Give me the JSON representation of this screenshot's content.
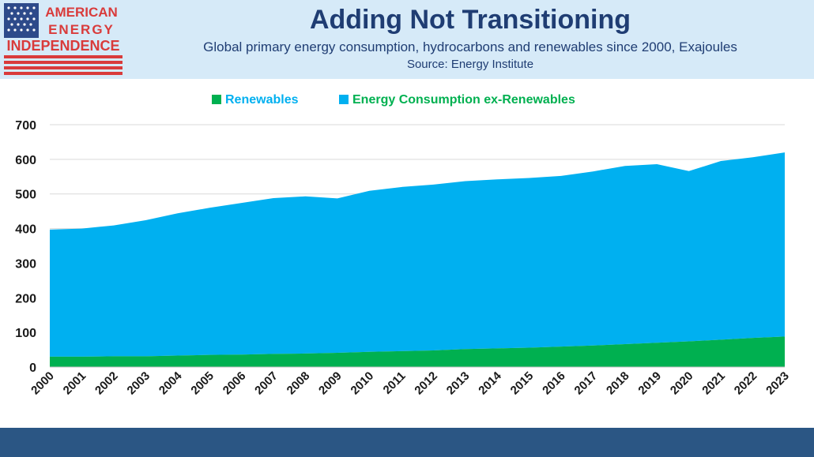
{
  "header": {
    "logo_lines": [
      "AMERICAN",
      "ENERGY",
      "INDEPENDENCE"
    ],
    "title": "Adding Not Transitioning",
    "subtitle": "Global primary energy consumption, hydrocarbons and renewables since 2000, Exajoules",
    "source": "Source: Energy Institute"
  },
  "colors": {
    "header_bg": "#d6eaf8",
    "title": "#1f3d73",
    "renewables": "#00b050",
    "ex_renewables": "#00b0f0",
    "legend_renewables_text": "#00b0f0",
    "legend_ex_renewables_text": "#00b050",
    "footer": "#2b5684"
  },
  "chart_data": {
    "type": "area",
    "stacked": true,
    "title": "",
    "xlabel": "",
    "ylabel": "",
    "x": [
      "2000",
      "2001",
      "2002",
      "2003",
      "2004",
      "2005",
      "2006",
      "2007",
      "2008",
      "2009",
      "2010",
      "2011",
      "2012",
      "2013",
      "2014",
      "2015",
      "2016",
      "2017",
      "2018",
      "2019",
      "2020",
      "2021",
      "2022",
      "2023"
    ],
    "series": [
      {
        "name": "Renewables",
        "values": [
          30,
          30,
          31,
          31,
          33,
          35,
          36,
          38,
          39,
          41,
          44,
          46,
          48,
          52,
          54,
          56,
          59,
          62,
          66,
          70,
          74,
          79,
          84,
          88
        ]
      },
      {
        "name": "Energy Consumption ex-Renewables",
        "values": [
          367,
          370,
          378,
          393,
          411,
          425,
          438,
          450,
          454,
          446,
          465,
          474,
          479,
          485,
          488,
          490,
          493,
          503,
          515,
          516,
          492,
          516,
          522,
          532
        ]
      }
    ],
    "legend": [
      {
        "label": "Renewables",
        "swatch": "renewables"
      },
      {
        "label": "Energy Consumption ex-Renewables",
        "swatch": "ex_renewables"
      }
    ],
    "legend_position": "top-center",
    "ylim": [
      0,
      700
    ],
    "yticks": [
      0,
      100,
      200,
      300,
      400,
      500,
      600,
      700
    ],
    "grid": true
  }
}
